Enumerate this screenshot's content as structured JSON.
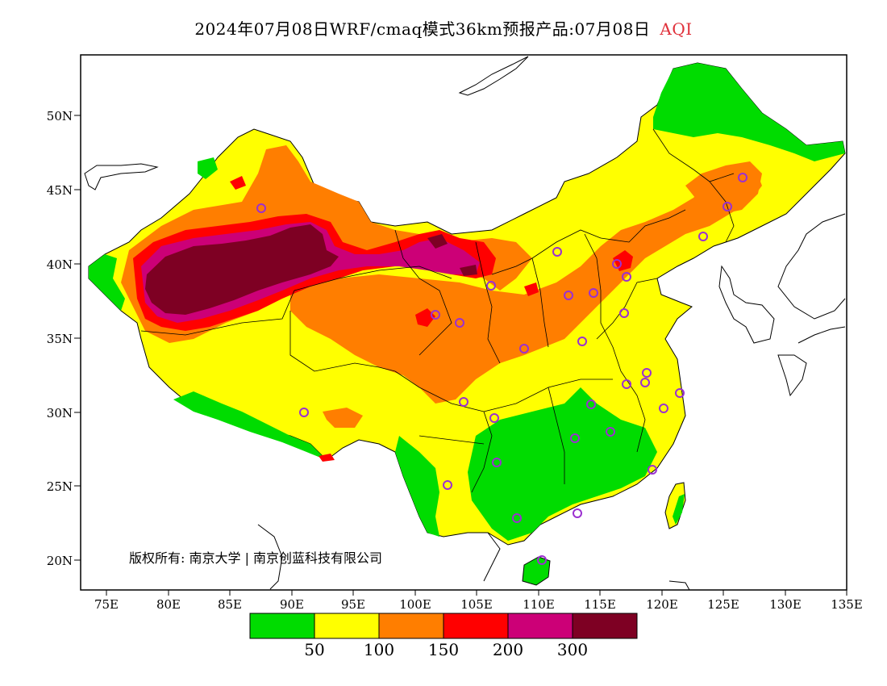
{
  "title": {
    "main": "2024年07月08日WRF/cmaq模式36km预报产品:07月08日",
    "variable": "AQI"
  },
  "copyright": "版权所有: 南京大学 | 南京创蓝科技有限公司",
  "axes": {
    "lat_ticks": [
      "50N",
      "45N",
      "40N",
      "35N",
      "30N",
      "25N",
      "20N"
    ],
    "lon_ticks": [
      "75E",
      "80E",
      "85E",
      "90E",
      "95E",
      "100E",
      "105E",
      "110E",
      "115E",
      "120E",
      "125E",
      "130E",
      "135E"
    ]
  },
  "legend": {
    "colors": [
      "#00dc00",
      "#ffff00",
      "#ff7e00",
      "#ff0000",
      "#cc0077",
      "#7e0023"
    ],
    "labels": [
      "50",
      "100",
      "150",
      "200",
      "300"
    ]
  },
  "chart_data": {
    "type": "heatmap",
    "lon_range": [
      73,
      135
    ],
    "lat_range": [
      18,
      54
    ],
    "levels": [
      50,
      100,
      150,
      200,
      300
    ]
  }
}
